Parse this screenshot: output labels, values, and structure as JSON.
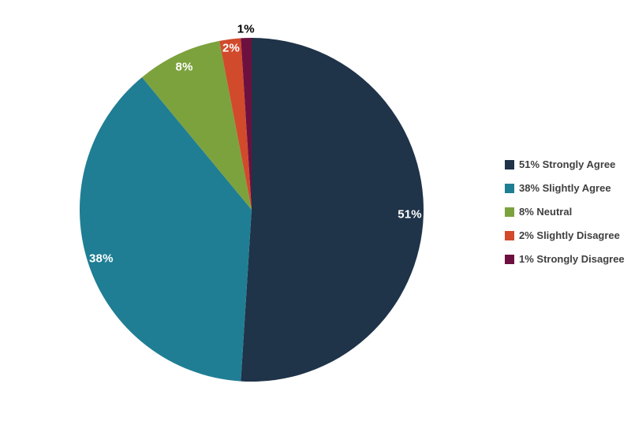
{
  "page": {
    "background_color": "#ffffff"
  },
  "chart_data": {
    "type": "pie",
    "title": "",
    "start_angle_deg": 0,
    "direction": "clockwise",
    "slices": [
      {
        "label": "Strongly Agree",
        "value": 51,
        "color": "#1F3349",
        "data_label": "51%",
        "label_color": "#FFFFFF",
        "label_r": 0.92,
        "outside": false
      },
      {
        "label": "Slightly Agree",
        "value": 38,
        "color": "#1F7E93",
        "data_label": "38%",
        "label_color": "#FFFFFF",
        "label_r": 0.92,
        "outside": false
      },
      {
        "label": "Neutral",
        "value": 8,
        "color": "#7CA23D",
        "data_label": "8%",
        "label_color": "#FFFFFF",
        "label_r": 0.92,
        "outside": false
      },
      {
        "label": "Slightly Disagree",
        "value": 2,
        "color": "#D14A2C",
        "data_label": "2%",
        "label_color": "#FFFFFF",
        "label_r": 0.95,
        "outside": false
      },
      {
        "label": "Strongly Disagree",
        "value": 1,
        "color": "#6D1040",
        "data_label": "1%",
        "label_color": "#000000",
        "label_r": 1.05,
        "outside": true
      }
    ],
    "legend": {
      "position": "right",
      "text_color": "#404040",
      "entries": [
        "51% Strongly Agree",
        "38% Slightly Agree",
        "8% Neutral",
        "2% Slightly Disagree",
        "1% Strongly Disagree"
      ]
    }
  }
}
